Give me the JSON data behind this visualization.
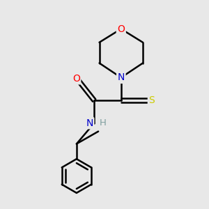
{
  "bg_color": "#e8e8e8",
  "bond_color": "#000000",
  "atom_colors": {
    "O": "#ff0000",
    "N": "#0000cc",
    "S": "#cccc00",
    "H": "#7f9f9f",
    "C": "#000000"
  },
  "bond_width": 1.8,
  "fig_size": [
    3.0,
    3.0
  ],
  "dpi": 100
}
